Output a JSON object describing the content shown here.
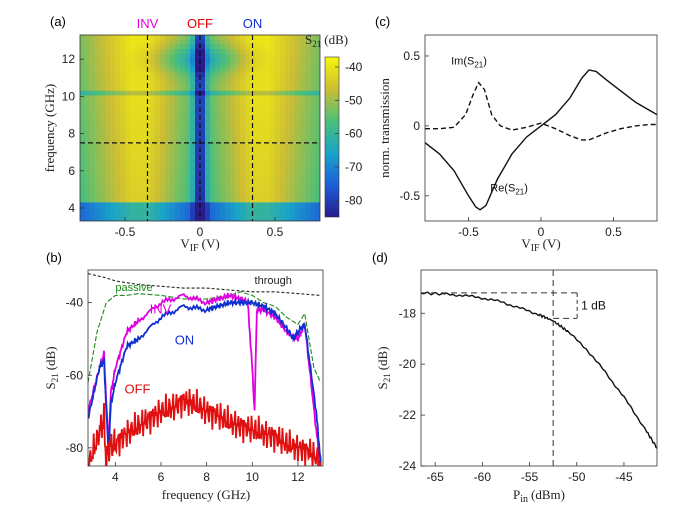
{
  "figure": {
    "panels": [
      {
        "id": "a",
        "label": "(a)"
      },
      {
        "id": "b",
        "label": "(b)"
      },
      {
        "id": "c",
        "label": "(c)"
      },
      {
        "id": "d",
        "label": "(d)"
      }
    ]
  },
  "chart_data": [
    {
      "id": "a",
      "type": "heatmap",
      "title": "",
      "xlabel": "V",
      "xlabel_sub": "IF",
      "xlabel_unit": "(V)",
      "ylabel": "frequency (GHz)",
      "xlim": [
        -0.8,
        0.8
      ],
      "ylim": [
        3.3,
        13.3
      ],
      "xticks": [
        -0.5,
        0,
        0.5
      ],
      "xtick_labels": [
        "-0.5",
        "0",
        "0.5"
      ],
      "yticks": [
        4,
        6,
        8,
        10,
        12
      ],
      "ytick_labels": [
        "4",
        "6",
        "8",
        "10",
        "12"
      ],
      "colorbar": {
        "label": "S",
        "label_sub": "21",
        "label_unit": "(dB)",
        "range": [
          -85,
          -37
        ],
        "ticks": [
          -40,
          -50,
          -60,
          -70,
          -80
        ],
        "tick_labels": [
          "-40",
          "-50",
          "-60",
          "-70",
          "-80"
        ]
      },
      "markers": [
        {
          "label": "INV",
          "x": -0.35,
          "color": "#e000e0"
        },
        {
          "label": "OFF",
          "x": 0.0,
          "color": "#e00000"
        },
        {
          "label": "ON",
          "x": 0.35,
          "color": "#1030d0"
        }
      ],
      "hline_frequency": 7.5
    },
    {
      "id": "b",
      "type": "line",
      "xlabel": "frequency (GHz)",
      "ylabel": "S",
      "ylabel_sub": "21",
      "ylabel_unit": "(dB)",
      "xlim": [
        2.8,
        13.1
      ],
      "ylim": [
        -85,
        -31
      ],
      "xticks": [
        4,
        6,
        8,
        10,
        12
      ],
      "xtick_labels": [
        "4",
        "6",
        "8",
        "10",
        "12"
      ],
      "yticks": [
        -40,
        -60,
        -80
      ],
      "ytick_labels": [
        "-40",
        "-60",
        "-80"
      ],
      "series": [
        {
          "name": "through",
          "color": "#222222",
          "dash": "3,2",
          "x": [
            2.8,
            3.5,
            4,
            5,
            6,
            7,
            8,
            9,
            10,
            11,
            12,
            13
          ],
          "y": [
            -32,
            -33,
            -34,
            -35,
            -35.5,
            -36,
            -36,
            -36.5,
            -37,
            -37,
            -37.5,
            -38
          ]
        },
        {
          "name": "passive",
          "color": "#1a8a1a",
          "dash": "5,2",
          "x": [
            2.8,
            3.2,
            3.6,
            4.0,
            4.5,
            5,
            6,
            7,
            8,
            9,
            9.5,
            10,
            10.5,
            11,
            11.5,
            12,
            12.3,
            12.7,
            13
          ],
          "y": [
            -62,
            -48,
            -40,
            -38,
            -38,
            -37.5,
            -38,
            -39,
            -39,
            -38,
            -37,
            -38,
            -40,
            -41,
            -44,
            -46,
            -43,
            -58,
            -62
          ]
        },
        {
          "name": "INV",
          "color": "#e000e0",
          "dash": "",
          "x": [
            2.8,
            3.3,
            3.5,
            3.7,
            3.8,
            4.0,
            4.5,
            5,
            6,
            7,
            8,
            8.5,
            9,
            9.5,
            9.8,
            10,
            10.1,
            10.2,
            10.5,
            11,
            11.5,
            12,
            12.3,
            12.8,
            13
          ],
          "y": [
            -70,
            -58,
            -54,
            -80,
            -65,
            -58,
            -48,
            -45,
            -40,
            -38,
            -40,
            -39,
            -38,
            -39,
            -40,
            -58,
            -70,
            -42,
            -42,
            -44,
            -48,
            -50,
            -46,
            -75,
            -85
          ]
        },
        {
          "name": "ON",
          "color": "#1030d0",
          "dash": "",
          "x": [
            2.8,
            3.3,
            3.5,
            3.7,
            3.8,
            4.0,
            4.5,
            5,
            6,
            7,
            8,
            8.5,
            9,
            9.5,
            10,
            10.5,
            11,
            11.5,
            11.8,
            12,
            12.3,
            12.8,
            13
          ],
          "y": [
            -72,
            -58,
            -56,
            -82,
            -68,
            -62,
            -52,
            -50,
            -44,
            -41,
            -42,
            -41,
            -40,
            -40,
            -40,
            -41,
            -43,
            -47,
            -50,
            -48,
            -46,
            -70,
            -84
          ]
        },
        {
          "name": "OFF",
          "color": "#e01010",
          "dash": "",
          "x": [
            2.8,
            3.3,
            3.5,
            3.6,
            3.7,
            4.0,
            4.5,
            5,
            5.5,
            6,
            6.5,
            7,
            7.5,
            8,
            8.5,
            9,
            9.5,
            10,
            10.5,
            11,
            11.5,
            12,
            12.5,
            13
          ],
          "y": [
            -85,
            -76,
            -72,
            -85,
            -80,
            -79,
            -76,
            -74,
            -72,
            -70,
            -69,
            -67,
            -68,
            -70,
            -71,
            -73,
            -74,
            -75,
            -76,
            -77,
            -79,
            -80,
            -81,
            -84
          ]
        }
      ],
      "series_labels": [
        {
          "text": "passive",
          "color": "#1a8a1a",
          "at": [
            4.0,
            -36.8
          ]
        },
        {
          "text": "through",
          "color": "#222222",
          "at": [
            10.1,
            -34.8
          ]
        },
        {
          "text": "INV",
          "color": "#e000e0",
          "at": [
            5.5,
            -43
          ]
        },
        {
          "text": "ON",
          "color": "#1030d0",
          "at": [
            6.6,
            -51.5
          ]
        },
        {
          "text": "OFF",
          "color": "#e01010",
          "at": [
            4.4,
            -65
          ]
        }
      ]
    },
    {
      "id": "c",
      "type": "line",
      "xlabel": "V",
      "xlabel_sub": "IF",
      "xlabel_unit": "(V)",
      "ylabel": "norm. transmission",
      "xlim": [
        -0.8,
        0.8
      ],
      "ylim": [
        -0.68,
        0.65
      ],
      "xticks": [
        -0.5,
        0,
        0.5
      ],
      "xtick_labels": [
        "-0.5",
        "0",
        "0.5"
      ],
      "yticks": [
        0.5,
        0,
        -0.5
      ],
      "ytick_labels": [
        "0.5",
        "0",
        "-0.5"
      ],
      "series": [
        {
          "name": "Re(S21)",
          "dash": "",
          "x": [
            -0.8,
            -0.7,
            -0.6,
            -0.5,
            -0.45,
            -0.42,
            -0.38,
            -0.3,
            -0.2,
            -0.1,
            0,
            0.1,
            0.2,
            0.28,
            0.33,
            0.38,
            0.45,
            0.55,
            0.65,
            0.75,
            0.8
          ],
          "y": [
            -0.12,
            -0.2,
            -0.32,
            -0.5,
            -0.58,
            -0.6,
            -0.57,
            -0.38,
            -0.2,
            -0.08,
            0.0,
            0.08,
            0.2,
            0.34,
            0.4,
            0.39,
            0.33,
            0.25,
            0.17,
            0.11,
            0.08
          ]
        },
        {
          "name": "Im(S21)",
          "dash": "5,3",
          "x": [
            -0.8,
            -0.7,
            -0.6,
            -0.52,
            -0.47,
            -0.43,
            -0.39,
            -0.34,
            -0.28,
            -0.2,
            -0.1,
            0,
            0.1,
            0.2,
            0.28,
            0.33,
            0.38,
            0.45,
            0.55,
            0.65,
            0.75,
            0.8
          ],
          "y": [
            -0.02,
            -0.02,
            -0.01,
            0.08,
            0.22,
            0.31,
            0.26,
            0.08,
            0.0,
            -0.03,
            -0.01,
            0.02,
            -0.02,
            -0.07,
            -0.1,
            -0.1,
            -0.08,
            -0.05,
            -0.02,
            0.0,
            0.01,
            0.01
          ]
        }
      ],
      "series_labels": [
        {
          "text": "Im(S",
          "sub": "21",
          "close": ")",
          "at": [
            -0.62,
            0.44
          ]
        },
        {
          "text": "Re(S",
          "sub": "21",
          "close": ")",
          "at": [
            -0.35,
            -0.47
          ]
        }
      ]
    },
    {
      "id": "d",
      "type": "line",
      "xlabel": "P",
      "xlabel_sub": "in",
      "xlabel_unit": "(dBm)",
      "ylabel": "S",
      "ylabel_sub": "21",
      "ylabel_unit": "(dB)",
      "xlim": [
        -66.5,
        -41.5
      ],
      "ylim": [
        -24,
        -16.3
      ],
      "xticks": [
        -65,
        -60,
        -55,
        -50,
        -45
      ],
      "xtick_labels": [
        "-65",
        "-60",
        "-55",
        "-50",
        "-45"
      ],
      "yticks": [
        -18,
        -20,
        -22,
        -24
      ],
      "ytick_labels": [
        "-18",
        "-20",
        "-22",
        "-24"
      ],
      "series": [
        {
          "name": "S21",
          "x": [
            -66.5,
            -64,
            -62,
            -60,
            -58,
            -56,
            -54,
            -52.5,
            -51,
            -49,
            -47,
            -45,
            -43,
            -41.5
          ],
          "y": [
            -17.2,
            -17.25,
            -17.3,
            -17.4,
            -17.55,
            -17.8,
            -18.05,
            -18.3,
            -18.7,
            -19.4,
            -20.3,
            -21.3,
            -22.4,
            -23.3
          ]
        }
      ],
      "annotation": {
        "text": "1 dB",
        "compression_point_x": -52.5,
        "ref_level": -17.2,
        "level": -18.2
      }
    }
  ]
}
